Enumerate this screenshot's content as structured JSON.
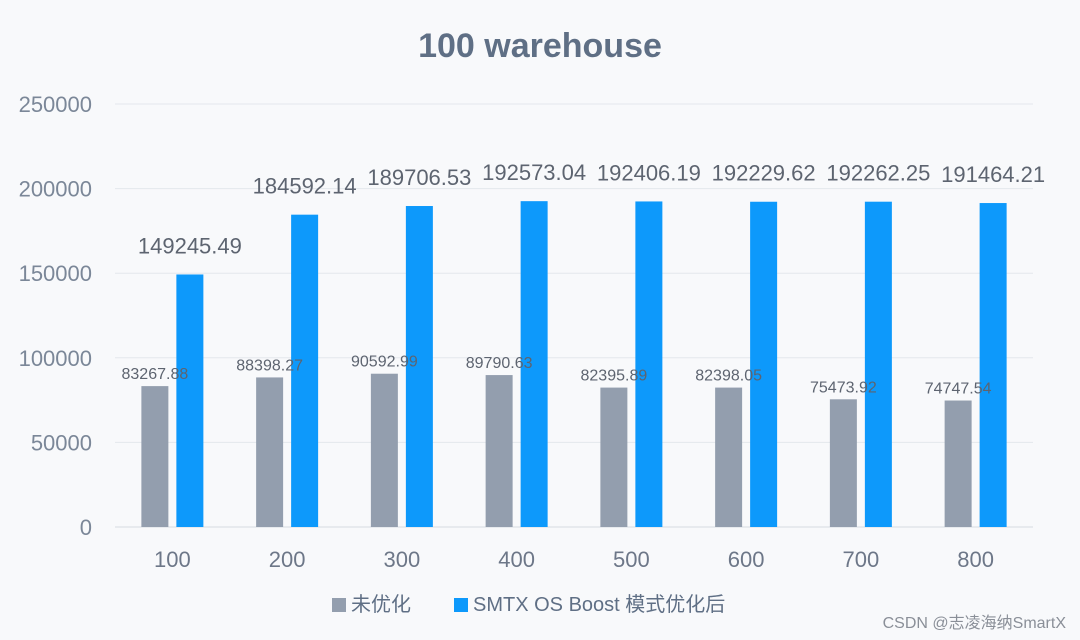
{
  "chart_data": {
    "type": "bar",
    "title": "100 warehouse",
    "categories": [
      "100",
      "200",
      "300",
      "400",
      "500",
      "600",
      "700",
      "800"
    ],
    "series": [
      {
        "name": "未优化",
        "color": "#939eae",
        "values": [
          83267.88,
          88398.27,
          90592.99,
          89790.63,
          82395.89,
          82398.05,
          75473.92,
          74747.54
        ],
        "labels": [
          "83267.88",
          "88398.27",
          "90592.99",
          "89790.63",
          "82395.89",
          "82398.05",
          "75473.92",
          "74747.54"
        ]
      },
      {
        "name": "SMTX OS Boost 模式优化后",
        "color": "#0d99fb",
        "values": [
          149245.49,
          184592.14,
          189706.53,
          192573.04,
          192406.19,
          192229.62,
          192262.25,
          191464.21
        ],
        "labels": [
          "149245.49",
          "184592.14",
          "189706.53",
          "192573.04",
          "192406.19",
          "192229.62",
          "192262.25",
          "191464.21"
        ]
      }
    ],
    "ylim": [
      0,
      250000
    ],
    "yticks": [
      "0",
      "50000",
      "100000",
      "150000",
      "200000",
      "250000"
    ],
    "xlabel": "",
    "ylabel": "",
    "grid": true,
    "legend": "bottom-center"
  },
  "watermark": "CSDN @志凌海纳SmartX"
}
